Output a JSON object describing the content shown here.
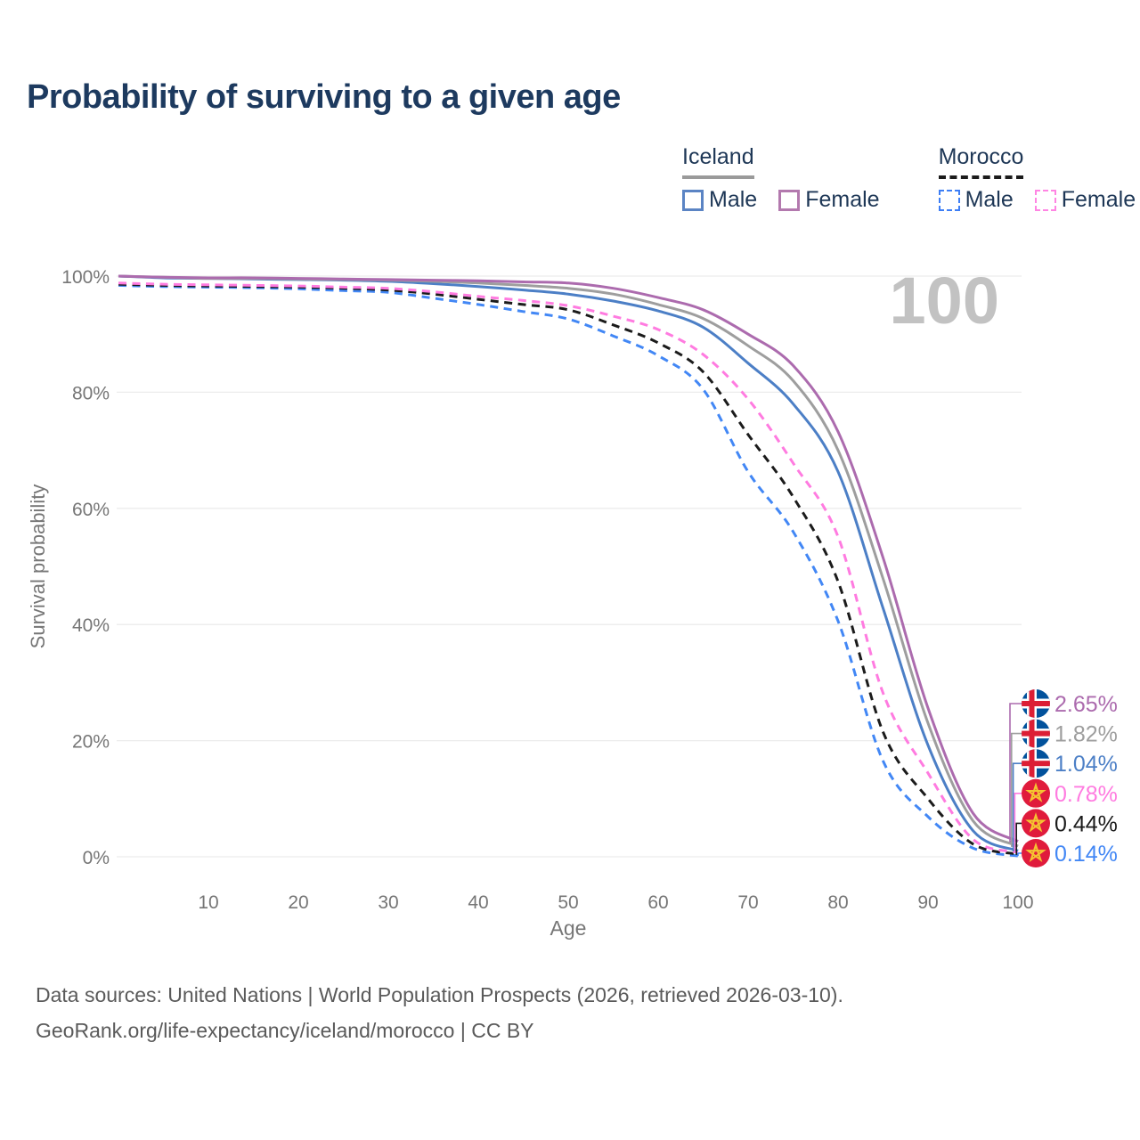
{
  "title": "Probability of surviving to a given age",
  "watermark_age": "100",
  "legend": {
    "groups": [
      {
        "label": "Iceland",
        "line_style": "solid",
        "underline_color": "#9a9a9a",
        "items": [
          {
            "label": "Male",
            "color": "#4C7FC6"
          },
          {
            "label": "Female",
            "color": "#AC6BAE"
          }
        ]
      },
      {
        "label": "Morocco",
        "line_style": "dashed",
        "underline_color": "#1b1b1b",
        "items": [
          {
            "label": "Male",
            "color": "#4287F5"
          },
          {
            "label": "Female",
            "color": "#FF7BE0"
          }
        ]
      }
    ]
  },
  "chart_data": {
    "type": "line",
    "title": "Probability of surviving to a given age",
    "xlabel": "Age",
    "ylabel": "Survival probability",
    "xlim": [
      0,
      100
    ],
    "ylim": [
      0,
      100
    ],
    "grid": "horizontal",
    "x_ticks": [
      {
        "value": 10,
        "label": "10"
      },
      {
        "value": 20,
        "label": "20"
      },
      {
        "value": 30,
        "label": "30"
      },
      {
        "value": 40,
        "label": "40"
      },
      {
        "value": 50,
        "label": "50"
      },
      {
        "value": 60,
        "label": "60"
      },
      {
        "value": 70,
        "label": "70"
      },
      {
        "value": 80,
        "label": "80"
      },
      {
        "value": 90,
        "label": "90"
      },
      {
        "value": 100,
        "label": "100"
      }
    ],
    "y_ticks": [
      {
        "value": 0,
        "label": "0%"
      },
      {
        "value": 20,
        "label": "20%"
      },
      {
        "value": 40,
        "label": "40%"
      },
      {
        "value": 60,
        "label": "60%"
      },
      {
        "value": 80,
        "label": "80%"
      },
      {
        "value": 100,
        "label": "100%"
      }
    ],
    "x": [
      0,
      5,
      10,
      15,
      20,
      25,
      30,
      35,
      40,
      45,
      50,
      55,
      60,
      65,
      70,
      75,
      80,
      85,
      90,
      95,
      100
    ],
    "series": [
      {
        "name": "Iceland Female",
        "country": "Iceland",
        "sex": "Female",
        "color": "#AC6BAE",
        "dashed": false,
        "end_label": "2.65%",
        "values": [
          100,
          99.8,
          99.7,
          99.7,
          99.6,
          99.5,
          99.4,
          99.3,
          99.2,
          99.0,
          98.8,
          97.9,
          96.3,
          94.2,
          90.0,
          84.6,
          73.2,
          51.5,
          25.6,
          7.5,
          2.65
        ]
      },
      {
        "name": "Iceland Both sexes",
        "country": "Iceland",
        "sex": "Both",
        "color": "#9E9E9E",
        "dashed": false,
        "end_label": "1.82%",
        "values": [
          100,
          99.8,
          99.6,
          99.6,
          99.5,
          99.4,
          99.3,
          99.1,
          98.8,
          98.4,
          97.9,
          96.9,
          95.1,
          92.7,
          88.0,
          82.0,
          70.0,
          47.9,
          23.0,
          6.2,
          1.82
        ]
      },
      {
        "name": "Iceland Male",
        "country": "Iceland",
        "sex": "Male",
        "color": "#4C7FC6",
        "dashed": false,
        "end_label": "1.04%",
        "values": [
          100,
          99.7,
          99.6,
          99.5,
          99.4,
          99.3,
          99.1,
          98.7,
          98.2,
          97.6,
          96.9,
          95.7,
          94.0,
          91.2,
          85.0,
          78.0,
          66.3,
          42.8,
          19.2,
          4.5,
          1.04
        ]
      },
      {
        "name": "Morocco Female",
        "country": "Morocco",
        "sex": "Female",
        "color": "#FF7BE0",
        "dashed": true,
        "end_label": "0.78%",
        "values": [
          98.8,
          98.6,
          98.5,
          98.4,
          98.3,
          98.1,
          97.9,
          97.3,
          96.5,
          95.8,
          94.9,
          93.1,
          90.8,
          86.5,
          78.8,
          67.8,
          55.1,
          28.2,
          14.4,
          3.0,
          0.78
        ]
      },
      {
        "name": "Morocco Both sexes",
        "country": "Morocco",
        "sex": "Both",
        "color": "#1b1b1b",
        "dashed": true,
        "end_label": "0.44%",
        "values": [
          98.6,
          98.4,
          98.3,
          98.2,
          98.1,
          97.9,
          97.6,
          96.9,
          96.0,
          95.1,
          94.2,
          91.6,
          88.5,
          83.5,
          72.7,
          62.0,
          47.4,
          21.5,
          10.0,
          2.2,
          0.44
        ]
      },
      {
        "name": "Morocco Male",
        "country": "Morocco",
        "sex": "Male",
        "color": "#4287F5",
        "dashed": true,
        "end_label": "0.14%",
        "values": [
          98.4,
          98.2,
          98.1,
          98.0,
          97.8,
          97.5,
          97.2,
          96.2,
          95.1,
          93.9,
          92.6,
          89.7,
          86.3,
          80.5,
          66.3,
          56.0,
          40.6,
          16.5,
          6.9,
          1.5,
          0.14
        ]
      }
    ],
    "flag_colors": {
      "iceland_blue": "#02529C",
      "iceland_white": "#ffffff",
      "iceland_red": "#DC1E35",
      "morocco_red": "#E01B3C",
      "morocco_star": "#F5C431"
    },
    "axis_color": "#767676",
    "grid_color": "#ececec",
    "watermark_color": "#c2c2c2"
  },
  "footer": {
    "line1": "Data sources: United Nations | World Population Prospects (2026, retrieved 2026-03-10).",
    "line2": "GeoRank.org/life-expectancy/iceland/morocco | CC BY"
  }
}
